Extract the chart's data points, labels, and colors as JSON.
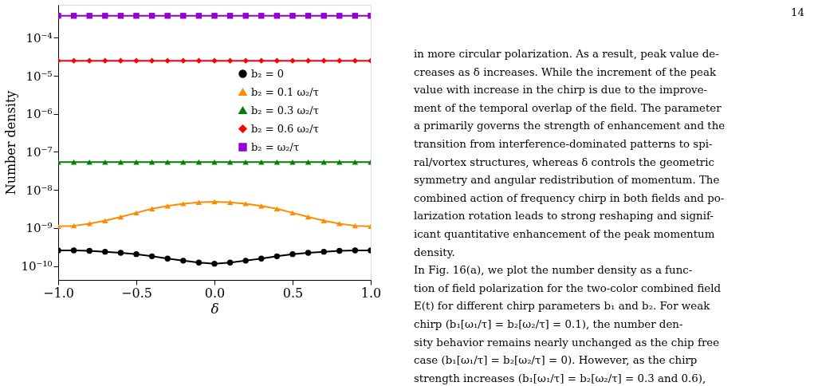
{
  "chart_data": {
    "type": "line",
    "xlabel": "δ",
    "ylabel": "Number density",
    "x": [
      -1.0,
      -0.9,
      -0.8,
      -0.7,
      -0.6,
      -0.5,
      -0.4,
      -0.3,
      -0.2,
      -0.1,
      0.0,
      0.1,
      0.2,
      0.3,
      0.4,
      0.5,
      0.6,
      0.7,
      0.8,
      0.9,
      1.0
    ],
    "series": [
      {
        "name": "b₂ = 0",
        "color": "#000000",
        "marker": "circle",
        "values": [
          2.57e-10,
          2.57e-10,
          2.5e-10,
          2.37e-10,
          2.22e-10,
          2.05e-10,
          1.8e-10,
          1.57e-10,
          1.38e-10,
          1.23e-10,
          1.15e-10,
          1.23e-10,
          1.38e-10,
          1.57e-10,
          1.8e-10,
          2.05e-10,
          2.22e-10,
          2.37e-10,
          2.5e-10,
          2.57e-10,
          2.57e-10
        ]
      },
      {
        "name": "b₂ = 0.1 ω₂/τ",
        "color": "#ff8c00",
        "marker": "triangle",
        "values": [
          1.1e-09,
          1.14e-09,
          1.3e-09,
          1.55e-09,
          1.95e-09,
          2.5e-09,
          3.2e-09,
          3.8e-09,
          4.35e-09,
          4.7e-09,
          4.9e-09,
          4.7e-09,
          4.35e-09,
          3.8e-09,
          3.2e-09,
          2.5e-09,
          1.95e-09,
          1.55e-09,
          1.3e-09,
          1.14e-09,
          1.1e-09
        ]
      },
      {
        "name": "b₂ = 0.3 ω₂/τ",
        "color": "#008000",
        "marker": "triangle",
        "values": [
          5.4e-08,
          5.4e-08,
          5.4e-08,
          5.4e-08,
          5.4e-08,
          5.4e-08,
          5.4e-08,
          5.4e-08,
          5.4e-08,
          5.4e-08,
          5.4e-08,
          5.4e-08,
          5.4e-08,
          5.4e-08,
          5.4e-08,
          5.4e-08,
          5.4e-08,
          5.4e-08,
          5.4e-08,
          5.4e-08,
          5.4e-08
        ]
      },
      {
        "name": "b₂ = 0.6 ω₂/τ",
        "color": "#ff0000",
        "marker": "diamond",
        "values": [
          2.5e-05,
          2.5e-05,
          2.5e-05,
          2.5e-05,
          2.5e-05,
          2.5e-05,
          2.5e-05,
          2.5e-05,
          2.5e-05,
          2.5e-05,
          2.5e-05,
          2.5e-05,
          2.5e-05,
          2.5e-05,
          2.5e-05,
          2.5e-05,
          2.5e-05,
          2.5e-05,
          2.5e-05,
          2.5e-05,
          2.5e-05
        ]
      },
      {
        "name": "b₂ = ω₂/τ",
        "color": "#9400d3",
        "marker": "square",
        "values": [
          0.00038,
          0.00038,
          0.00038,
          0.00038,
          0.00038,
          0.00038,
          0.00038,
          0.00038,
          0.00038,
          0.00038,
          0.00038,
          0.00038,
          0.00038,
          0.00038,
          0.00038,
          0.00038,
          0.00038,
          0.00038,
          0.00038,
          0.00038,
          0.00038
        ]
      }
    ],
    "log": "y",
    "grid": false,
    "legend": "right",
    "line_style": "solid",
    "xlim": [
      -1.0,
      1.0
    ],
    "xticks": [
      {
        "value": -1.0,
        "label": "−1.0"
      },
      {
        "value": -0.5,
        "label": "−0.5"
      },
      {
        "value": 0.0,
        "label": "0.0"
      },
      {
        "value": 0.5,
        "label": "0.5"
      },
      {
        "value": 1.0,
        "label": "1.0"
      }
    ],
    "ylim": [
      4.3e-11,
      0.00074
    ],
    "yticks": [
      {
        "value": 1e-10,
        "label": "10⁻¹⁰"
      },
      {
        "value": 1e-09,
        "label": "10⁻⁹"
      },
      {
        "value": 1e-08,
        "label": "10⁻⁸"
      },
      {
        "value": 1e-07,
        "label": "10⁻⁷"
      },
      {
        "value": 1e-06,
        "label": "10⁻⁶"
      },
      {
        "value": 1e-05,
        "label": "10⁻⁵"
      },
      {
        "value": 0.0001,
        "label": "10⁻⁴"
      }
    ],
    "annotations": [
      "14",
      "in more circular polarization. As a result, peak value de-",
      "creases as δ increases. While the increment of the peak",
      "value with increase in the chirp is due to the improve-",
      "ment of the temporal overlap of the field. The parameter",
      "a primarily governs the strength of enhancement and the",
      "transition from interference-dominated patterns to spi-",
      "ral/vortex structures, whereas δ controls the geometric",
      "symmetry and angular redistribution of momentum. The",
      "combined action of frequency chirp in both fields and po-",
      "larization rotation leads to strong reshaping and signif-",
      "icant quantitative enhancement of the peak momentum",
      "density.",
      "In Fig. 16(a), we plot the number density as a func-",
      "tion of field polarization for the two-color combined field",
      "E(t) for different chirp parameters b₁ and b₂. For weak",
      "chirp (b₁[ω₁/τ] = b₂[ω₂/τ] = 0.1), the number den-",
      "sity behavior remains nearly unchanged as the chip free",
      "case (b₁[ω₁/τ] = b₂[ω₂/τ] = 0). However, as the chirp",
      "strength increases (b₁[ω₁/τ] = b₂[ω₂/τ] = 0.3 and 0.6),"
    ]
  }
}
